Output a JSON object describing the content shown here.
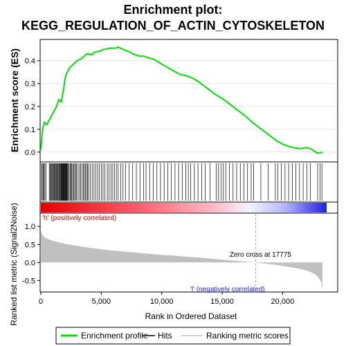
{
  "chart_data": {
    "type": "line",
    "title_line1": "Enrichment plot:",
    "title_line2": "KEGG_REGULATION_OF_ACTIN_CYTOSKELETON",
    "top_panel": {
      "ylabel": "Enrichment score (ES)",
      "ylim": [
        -0.04,
        0.49
      ],
      "yticks": [
        "0.0",
        "0.1",
        "0.2",
        "0.3",
        "0.4"
      ],
      "ytick_values": [
        0.0,
        0.1,
        0.2,
        0.3,
        0.4
      ],
      "grid": true,
      "series": [
        {
          "name": "Enrichment profile",
          "color": "#00dd00",
          "x": [
            0,
            150,
            300,
            500,
            700,
            900,
            1100,
            1300,
            1500,
            1700,
            1900,
            2000,
            2100,
            2200,
            2400,
            2600,
            2800,
            3000,
            3200,
            3400,
            3600,
            3800,
            4000,
            4200,
            4400,
            4600,
            4800,
            5000,
            5200,
            5400,
            5600,
            5800,
            6000,
            6200,
            6400,
            6600,
            6800,
            7000,
            7300,
            7600,
            7900,
            8200,
            8500,
            8800,
            9100,
            9400,
            9700,
            10000,
            10500,
            11000,
            11500,
            12000,
            12500,
            13000,
            13500,
            14000,
            14500,
            15000,
            15500,
            16000,
            16500,
            17000,
            17500,
            18000,
            18500,
            19000,
            19500,
            20000,
            20500,
            21000,
            21500,
            22000,
            22300,
            22600,
            22900,
            23100,
            23300
          ],
          "y": [
            0.01,
            0.1,
            0.13,
            0.12,
            0.14,
            0.16,
            0.18,
            0.2,
            0.23,
            0.22,
            0.28,
            0.32,
            0.34,
            0.35,
            0.37,
            0.38,
            0.39,
            0.4,
            0.405,
            0.41,
            0.42,
            0.43,
            0.43,
            0.425,
            0.435,
            0.44,
            0.44,
            0.445,
            0.45,
            0.45,
            0.455,
            0.455,
            0.455,
            0.455,
            0.46,
            0.455,
            0.45,
            0.445,
            0.44,
            0.43,
            0.425,
            0.42,
            0.42,
            0.415,
            0.41,
            0.405,
            0.395,
            0.385,
            0.37,
            0.355,
            0.34,
            0.335,
            0.325,
            0.31,
            0.29,
            0.27,
            0.25,
            0.235,
            0.215,
            0.195,
            0.175,
            0.155,
            0.13,
            0.11,
            0.09,
            0.07,
            0.05,
            0.035,
            0.025,
            0.018,
            0.015,
            0.02,
            0.015,
            0.005,
            -0.005,
            -0.003,
            0.0
          ]
        }
      ]
    },
    "hits": {
      "label": "Hits",
      "positions": [
        50,
        120,
        200,
        260,
        340,
        420,
        700,
        760,
        820,
        900,
        960,
        1020,
        1080,
        1130,
        1190,
        1250,
        1310,
        1360,
        1420,
        1480,
        1540,
        1580,
        1620,
        1680,
        1720,
        1760,
        1800,
        1840,
        1880,
        1920,
        1960,
        2000,
        2040,
        2080,
        2120,
        2160,
        2200,
        2260,
        2340,
        2420,
        2500,
        2560,
        2640,
        2720,
        2800,
        2880,
        2960,
        3080,
        3200,
        3300,
        3420,
        3520,
        3600,
        3700,
        3780,
        3860,
        3950,
        4100,
        4250,
        4400,
        4550,
        4700,
        4850,
        5000,
        5150,
        5300,
        5500,
        5650,
        5800,
        5950,
        6100,
        6250,
        6400,
        6600,
        6800,
        7000,
        7300,
        7600,
        7900,
        8200,
        8500,
        8700,
        9000,
        9300,
        9600,
        9900,
        10200,
        10500,
        10800,
        11100,
        11400,
        11700,
        12000,
        12200,
        12400,
        12700,
        13000,
        13300,
        13600,
        14000,
        14500,
        14700,
        14900,
        15100,
        15300,
        15600,
        15900,
        16200,
        16500,
        16800,
        17100,
        17400,
        17600,
        18200,
        18800,
        19400,
        19600,
        19900,
        20200,
        20500,
        20800,
        21100,
        21400,
        21700,
        22000,
        22300,
        22900,
        23100,
        23250
      ]
    },
    "ranking_bar": {
      "label_pos": "'h' (positively correlated)",
      "label_neg": "'l' (negatively correlated)"
    },
    "bottom_panel": {
      "ylabel": "Ranked list metric (Signal2Noise)",
      "xlabel": "Rank in Ordered Dataset",
      "ylim": [
        -0.8,
        1.35
      ],
      "yticks": [
        "-0.5",
        "0.0",
        "0.5",
        "1.0"
      ],
      "ytick_values": [
        -0.5,
        0.0,
        0.5,
        1.0
      ],
      "series": [
        {
          "name": "Ranking metric scores",
          "color": "#c0c0c0",
          "x": [
            0,
            100,
            300,
            600,
            1000,
            2000,
            3000,
            4000,
            5000,
            6000,
            7000,
            8000,
            9000,
            10000,
            11000,
            12000,
            13000,
            14000,
            15000,
            16000,
            17000,
            17775,
            18500,
            19500,
            20500,
            21500,
            22200,
            22700,
            23000,
            23200,
            23300
          ],
          "y": [
            0.9,
            0.78,
            0.7,
            0.65,
            0.6,
            0.52,
            0.46,
            0.41,
            0.37,
            0.33,
            0.3,
            0.27,
            0.24,
            0.21,
            0.19,
            0.16,
            0.14,
            0.11,
            0.08,
            0.05,
            0.02,
            0.0,
            -0.03,
            -0.07,
            -0.12,
            -0.18,
            -0.25,
            -0.33,
            -0.43,
            -0.55,
            -0.75
          ]
        }
      ],
      "zero_cross_label": "Zero cross at 17775",
      "zero_cross": 17775
    },
    "xlim": [
      0,
      24500
    ],
    "xticks": [
      "0",
      "5,000",
      "10,000",
      "15,000",
      "20,000"
    ],
    "xtick_values": [
      0,
      5000,
      10000,
      15000,
      20000
    ],
    "legend": {
      "placement": "bottom",
      "items": [
        "Enrichment profile",
        "Hits",
        "Ranking metric scores"
      ]
    }
  }
}
